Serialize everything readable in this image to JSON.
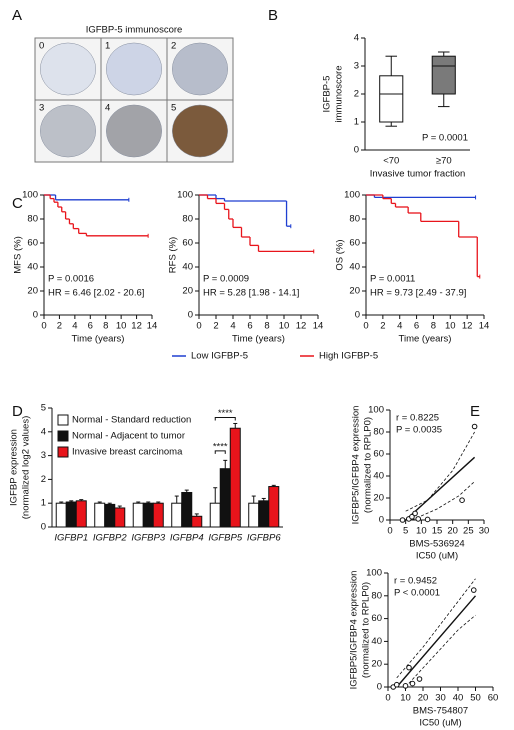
{
  "chart_data": [
    {
      "type": "image-grid",
      "panel": "A",
      "title": "IGFBP-5 immunoscore",
      "categories": [
        "0",
        "1",
        "2",
        "3",
        "4",
        "5"
      ],
      "colors": [
        "#dde2ec",
        "#cdd4e6",
        "#b7bdcb",
        "#bcc0c8",
        "#a2a3a8",
        "#7b5a3c"
      ]
    },
    {
      "type": "box",
      "panel": "B",
      "ylabel": [
        "IGFBP-5",
        "immunoscore"
      ],
      "xlabel": [
        "Invasive tumor fraction"
      ],
      "categories": [
        "<70",
        "≥70"
      ],
      "colors": [
        "#ffffff",
        "#7a7a7a"
      ],
      "boxes": [
        {
          "min": 0.85,
          "q1": 1.0,
          "median": 2.0,
          "q3": 2.65,
          "max": 3.35
        },
        {
          "min": 1.55,
          "q1": 2.0,
          "median": 3.0,
          "q3": 3.35,
          "max": 3.5
        }
      ],
      "ylim": [
        0,
        4
      ],
      "yticks": [
        0,
        1,
        2,
        3,
        4
      ],
      "annotations": [
        "P = 0.0001"
      ]
    },
    {
      "type": "km",
      "panel": "C",
      "ylabel": [
        "MFS (%)"
      ],
      "xlabel": [
        "Time (years)"
      ],
      "legend": "bottom",
      "xlim": [
        0,
        14
      ],
      "xticks": [
        0,
        2,
        4,
        6,
        8,
        10,
        12,
        14
      ],
      "ylim": [
        0,
        100
      ],
      "yticks": [
        0,
        20,
        40,
        60,
        80,
        100
      ],
      "annotations": [
        "P = 0.0016",
        "HR = 6.46 [2.02 - 20.6]"
      ],
      "series": [
        {
          "name": "Low IGFBP-5",
          "color": "#1f3fd1",
          "x": [
            0,
            1.5,
            11
          ],
          "values": [
            100,
            96,
            96
          ]
        },
        {
          "name": "High IGFBP-5",
          "color": "#e8141b",
          "x": [
            0,
            0.8,
            1.3,
            1.8,
            2.3,
            2.8,
            3.3,
            3.8,
            4.5,
            5.5,
            13.5
          ],
          "values": [
            100,
            97,
            94,
            90,
            86,
            80,
            76,
            72,
            68,
            66,
            66
          ]
        }
      ]
    },
    {
      "type": "km",
      "ylabel": [
        "RFS (%)"
      ],
      "xlabel": [
        "Time (years)"
      ],
      "xlim": [
        0,
        14
      ],
      "xticks": [
        0,
        2,
        4,
        6,
        8,
        10,
        12,
        14
      ],
      "ylim": [
        0,
        100
      ],
      "yticks": [
        0,
        20,
        40,
        60,
        80,
        100
      ],
      "annotations": [
        "P = 0.0009",
        "HR = 5.28 [1.98 - 14.1]"
      ],
      "series": [
        {
          "name": "Low IGFBP-5",
          "color": "#1f3fd1",
          "x": [
            0,
            2,
            3,
            10.3,
            10.8
          ],
          "values": [
            100,
            97,
            95,
            74,
            74
          ]
        },
        {
          "name": "High IGFBP-5",
          "color": "#e8141b",
          "x": [
            0,
            1,
            2,
            3,
            3.5,
            4,
            5,
            6,
            7,
            13.5
          ],
          "values": [
            100,
            97,
            93,
            88,
            80,
            73,
            65,
            58,
            53,
            53
          ]
        }
      ]
    },
    {
      "type": "km",
      "ylabel": [
        "OS (%)"
      ],
      "xlabel": [
        "Time (years)"
      ],
      "xlim": [
        0,
        14
      ],
      "xticks": [
        0,
        2,
        4,
        6,
        8,
        10,
        12,
        14
      ],
      "ylim": [
        0,
        100
      ],
      "yticks": [
        0,
        20,
        40,
        60,
        80,
        100
      ],
      "annotations": [
        "P = 0.0011",
        "HR = 9.73 [2.49 - 37.9]"
      ],
      "series": [
        {
          "name": "Low IGFBP-5",
          "color": "#1f3fd1",
          "x": [
            0,
            1,
            13
          ],
          "values": [
            100,
            98,
            98
          ]
        },
        {
          "name": "High IGFBP-5",
          "color": "#e8141b",
          "x": [
            0,
            2,
            3,
            3.5,
            5,
            6.5,
            11,
            13.2,
            13.5
          ],
          "values": [
            100,
            97,
            93,
            90,
            85,
            78,
            65,
            32,
            32
          ]
        }
      ]
    },
    {
      "type": "bar",
      "panel": "D",
      "ylabel": [
        "IGFBP expression",
        "(normalized log2 values)"
      ],
      "categories": [
        "IGFBP1",
        "IGFBP2",
        "IGFBP3",
        "IGFBP4",
        "IGFBP5",
        "IGFBP6"
      ],
      "ylim": [
        0,
        5
      ],
      "yticks": [
        0,
        1,
        2,
        3,
        4,
        5
      ],
      "annotations": [
        "****",
        "****"
      ],
      "series": [
        {
          "name": "Normal - Standard reduction",
          "color": "#ffffff",
          "values": [
            1.0,
            1.0,
            1.0,
            1.0,
            1.0,
            1.0
          ],
          "errors": [
            0.05,
            0.05,
            0.05,
            0.3,
            0.65,
            0.3
          ]
        },
        {
          "name": "Normal - Adjacent to tumor",
          "color": "#111111",
          "values": [
            1.05,
            0.95,
            1.0,
            1.45,
            2.45,
            1.1
          ],
          "errors": [
            0.05,
            0.05,
            0.05,
            0.1,
            0.35,
            0.1
          ]
        },
        {
          "name": "Invasive breast carcinoma",
          "color": "#e8141b",
          "values": [
            1.1,
            0.8,
            1.0,
            0.45,
            4.15,
            1.7
          ],
          "errors": [
            0.05,
            0.08,
            0.05,
            0.1,
            0.2,
            0.05
          ]
        }
      ]
    },
    {
      "type": "scatter",
      "panel": "E",
      "ylabel": [
        "IGFBP5/IGFBP4 expression",
        "(normalized to RPLP0)"
      ],
      "xlabel": [
        "BMS-536924",
        "IC50 (uM)"
      ],
      "xlim": [
        0,
        30
      ],
      "xticks": [
        0,
        5,
        10,
        15,
        20,
        25,
        30
      ],
      "ylim": [
        0,
        100
      ],
      "yticks": [
        0,
        20,
        40,
        60,
        80,
        100
      ],
      "annotations": [
        "r = 0.8225",
        "P = 0.0035"
      ],
      "x": [
        4,
        6,
        7,
        8,
        9,
        12,
        23,
        27
      ],
      "values": [
        0,
        1,
        3,
        6,
        1,
        0.5,
        18,
        85
      ],
      "fit": {
        "x": [
          5,
          27
        ],
        "values": [
          0,
          57
        ]
      },
      "ci_upper": {
        "x": [
          5,
          12,
          20,
          27
        ],
        "values": [
          8,
          18,
          45,
          80
        ]
      },
      "ci_lower": {
        "x": [
          7,
          15,
          22,
          27
        ],
        "values": [
          0,
          10,
          22,
          35
        ]
      }
    },
    {
      "type": "scatter",
      "ylabel": [
        "IGFBP5/IGFBP4 expression",
        "(normalized to RPLP0)"
      ],
      "xlabel": [
        "BMS-754807",
        "IC50 (uM)"
      ],
      "xlim": [
        0,
        60
      ],
      "xticks": [
        0,
        10,
        20,
        30,
        40,
        50,
        60
      ],
      "ylim": [
        0,
        100
      ],
      "yticks": [
        0,
        20,
        40,
        60,
        80,
        100
      ],
      "annotations": [
        "r = 0.9452",
        "P < 0.0001"
      ],
      "x": [
        3,
        5,
        10,
        12,
        14,
        18,
        49
      ],
      "values": [
        0,
        2,
        1,
        17,
        3,
        7,
        85
      ],
      "fit": {
        "x": [
          5,
          50
        ],
        "values": [
          0,
          80
        ]
      },
      "ci_upper": {
        "x": [
          5,
          20,
          35,
          50
        ],
        "values": [
          8,
          35,
          65,
          95
        ]
      },
      "ci_lower": {
        "x": [
          10,
          25,
          40,
          50
        ],
        "values": [
          0,
          25,
          50,
          63
        ]
      }
    }
  ]
}
